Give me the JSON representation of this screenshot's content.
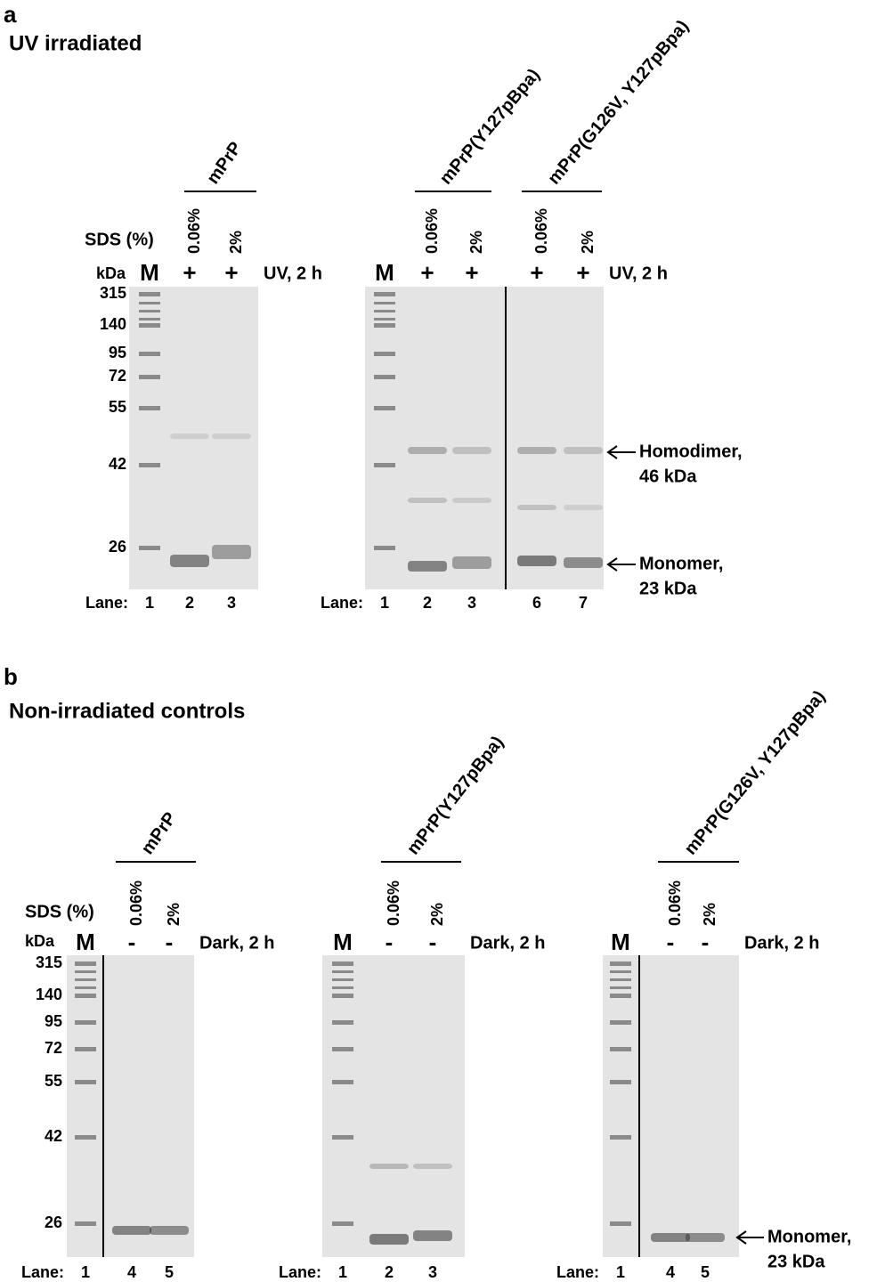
{
  "panels": [
    {
      "letter": "a",
      "title": "UV irradiated",
      "sds_label": "SDS (%)",
      "kda_label": "kDa",
      "lane_label": "Lane:",
      "marker_sizes": [
        "315",
        "140",
        "95",
        "72",
        "55",
        "42",
        "26"
      ],
      "gels": [
        {
          "marker": "M",
          "treatment_label": "UV, 2 h",
          "lanes": [
            "1",
            "2",
            "3"
          ],
          "groups": [
            {
              "name": "mPrP",
              "sds": [
                "0.06%",
                "2%"
              ],
              "treatment": [
                "+",
                "+"
              ]
            }
          ]
        },
        {
          "marker": "M",
          "treatment_label": "UV, 2 h",
          "lanes": [
            "1",
            "2",
            "3",
            "6",
            "7"
          ],
          "groups": [
            {
              "name": "mPrP(Y127pBpa)",
              "sds": [
                "0.06%",
                "2%"
              ],
              "treatment": [
                "+",
                "+"
              ]
            },
            {
              "name": "mPrP(G126V, Y127pBpa)",
              "sds": [
                "0.06%",
                "2%"
              ],
              "treatment": [
                "+",
                "+"
              ]
            }
          ]
        }
      ],
      "annotations": [
        {
          "text": "Homodimer,",
          "sub": "46 kDa"
        },
        {
          "text": "Monomer,",
          "sub": "23 kDa"
        }
      ]
    },
    {
      "letter": "b",
      "title": "Non-irradiated controls",
      "sds_label": "SDS (%)",
      "kda_label": "kDa",
      "lane_label": "Lane:",
      "marker_sizes": [
        "315",
        "140",
        "95",
        "72",
        "55",
        "42",
        "26"
      ],
      "gels": [
        {
          "marker": "M",
          "treatment_label": "Dark, 2 h",
          "lanes": [
            "1",
            "4",
            "5"
          ],
          "groups": [
            {
              "name": "mPrP",
              "sds": [
                "0.06%",
                "2%"
              ],
              "treatment": [
                "-",
                "-"
              ]
            }
          ]
        },
        {
          "marker": "M",
          "treatment_label": "Dark, 2 h",
          "lanes": [
            "1",
            "2",
            "3"
          ],
          "groups": [
            {
              "name": "mPrP(Y127pBpa)",
              "sds": [
                "0.06%",
                "2%"
              ],
              "treatment": [
                "-",
                "-"
              ]
            }
          ]
        },
        {
          "marker": "M",
          "treatment_label": "Dark, 2 h",
          "lanes": [
            "1",
            "4",
            "5"
          ],
          "groups": [
            {
              "name": "mPrP(G126V, Y127pBpa)",
              "sds": [
                "0.06%",
                "2%"
              ],
              "treatment": [
                "-",
                "-"
              ]
            }
          ]
        }
      ],
      "annotations": [
        {
          "text": "Monomer,",
          "sub": "23 kDa"
        }
      ]
    }
  ]
}
